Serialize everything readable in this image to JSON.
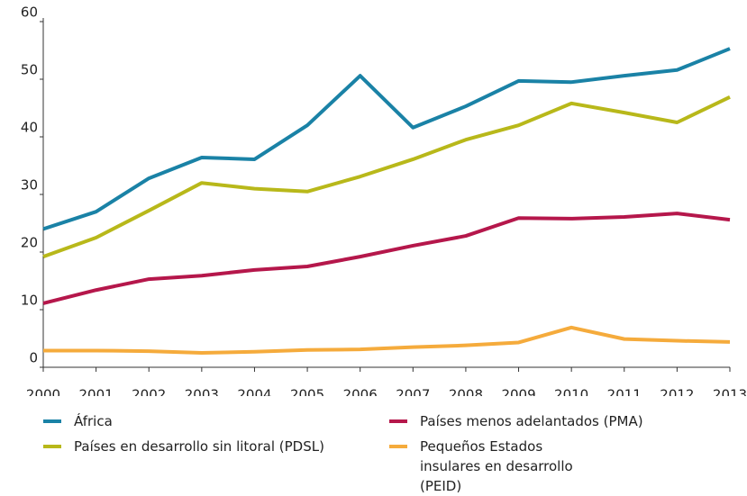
{
  "chart_data": {
    "type": "line",
    "categories": [
      "2000",
      "2001",
      "2002",
      "2003",
      "2004",
      "2005",
      "2006",
      "2007",
      "2008",
      "2009",
      "2010",
      "2011",
      "2012",
      "2013"
    ],
    "series": [
      {
        "name": "África",
        "color": "#1a82a6",
        "values": [
          24,
          27,
          32.8,
          36.4,
          36.1,
          42,
          50.6,
          41.6,
          45.3,
          49.7,
          49.5,
          50.6,
          51.6,
          55.3
        ]
      },
      {
        "name": "Países en desarrollo sin litoral (PDSL)",
        "color": "#b8b81a",
        "values": [
          19.2,
          22.5,
          27.2,
          32,
          31,
          30.5,
          33.1,
          36.1,
          39.5,
          42,
          45.8,
          44.2,
          42.5,
          46.9
        ]
      },
      {
        "name": "Países menos adelantados (PMA)",
        "color": "#b5174b",
        "values": [
          11.1,
          13.4,
          15.3,
          15.9,
          16.9,
          17.5,
          19.2,
          21.1,
          22.8,
          25.9,
          25.8,
          26.1,
          26.7,
          25.6
        ]
      },
      {
        "name": "Pequeños Estados insulares en desarrollo (PEID)",
        "color": "#f5ab3c",
        "values": [
          2.9,
          2.9,
          2.8,
          2.5,
          2.7,
          3.0,
          3.1,
          3.5,
          3.8,
          4.3,
          6.9,
          4.9,
          4.6,
          4.4
        ]
      }
    ],
    "ylim": [
      0,
      60
    ],
    "yticks": [
      0,
      10,
      20,
      30,
      40,
      50,
      60
    ],
    "grid": false
  }
}
